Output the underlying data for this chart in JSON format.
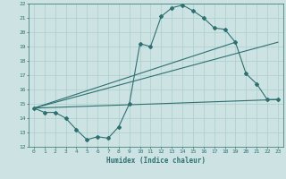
{
  "xlabel": "Humidex (Indice chaleur)",
  "xlim": [
    -0.5,
    23.5
  ],
  "ylim": [
    12,
    22
  ],
  "xticks": [
    0,
    1,
    2,
    3,
    4,
    5,
    6,
    7,
    8,
    9,
    10,
    11,
    12,
    13,
    14,
    15,
    16,
    17,
    18,
    19,
    20,
    21,
    22,
    23
  ],
  "yticks": [
    12,
    13,
    14,
    15,
    16,
    17,
    18,
    19,
    20,
    21,
    22
  ],
  "bg_color": "#cde3e3",
  "grid_color": "#aacece",
  "line_color": "#2e7070",
  "line1_x": [
    0,
    1,
    2,
    3,
    4,
    5,
    6,
    7,
    8,
    9,
    10,
    11,
    12,
    13,
    14,
    15,
    16,
    17,
    18,
    19,
    20,
    21,
    22,
    23
  ],
  "line1_y": [
    14.7,
    14.4,
    14.4,
    14.0,
    13.2,
    12.5,
    12.7,
    12.6,
    13.4,
    15.0,
    19.2,
    19.0,
    21.1,
    21.7,
    21.9,
    21.5,
    21.0,
    20.3,
    20.2,
    19.3,
    17.1,
    16.4,
    15.3,
    15.3
  ],
  "line2_x": [
    0,
    23
  ],
  "line2_y": [
    14.7,
    19.3
  ],
  "line3_x": [
    0,
    23
  ],
  "line3_y": [
    14.7,
    15.3
  ],
  "line4_x": [
    0,
    19
  ],
  "line4_y": [
    14.7,
    19.3
  ]
}
